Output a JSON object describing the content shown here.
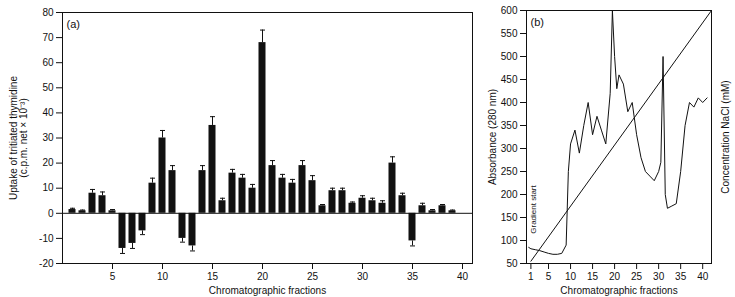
{
  "chart_data": [
    {
      "type": "bar",
      "title": "(a)",
      "xlabel": "Chromatographic fractions",
      "ylabel": "Uptake of tritiated thymidine\n(c.p.m. net × 10⁻³)",
      "x": [
        1,
        2,
        3,
        4,
        5,
        6,
        7,
        8,
        9,
        10,
        11,
        12,
        13,
        14,
        15,
        16,
        17,
        18,
        19,
        20,
        21,
        22,
        23,
        24,
        25,
        26,
        27,
        28,
        29,
        30,
        31,
        32,
        33,
        34,
        35,
        36,
        37,
        38,
        39
      ],
      "values": [
        1.5,
        1,
        8,
        7,
        1,
        -14,
        -12,
        -7,
        12,
        30,
        17,
        -10,
        -13,
        17,
        35,
        5,
        16,
        14,
        10,
        68,
        19,
        14,
        12,
        19,
        13,
        3,
        9,
        9,
        4,
        6,
        5,
        4,
        20,
        7,
        -11,
        3,
        1,
        3,
        1
      ],
      "errors": [
        0.5,
        0.3,
        1.5,
        1.5,
        0.5,
        2,
        2,
        1.5,
        2,
        3,
        2,
        1.5,
        2,
        2,
        3.5,
        1,
        1.5,
        1.5,
        1.5,
        5,
        2,
        1.5,
        1.5,
        2,
        2,
        0.5,
        1,
        1,
        0.5,
        1,
        1,
        1,
        2.5,
        1,
        2,
        1,
        0.5,
        0.5,
        0.3
      ],
      "color": "#111111",
      "xlim": [
        0,
        41
      ],
      "xticks": [
        5,
        10,
        15,
        20,
        25,
        30,
        35,
        40
      ],
      "ylim": [
        -20,
        80
      ],
      "yticks": [
        -20,
        -10,
        0,
        10,
        20,
        30,
        40,
        50,
        60,
        70,
        80
      ]
    },
    {
      "type": "line",
      "title": "(b)",
      "xlabel": "Chromatographic fractions",
      "ylabel": "Absorbance (280 nm)",
      "y2label": "Concentration NaCl (mM)",
      "xlim": [
        0,
        42
      ],
      "xticks": [
        1,
        5,
        10,
        15,
        20,
        25,
        30,
        35,
        40
      ],
      "ylim": [
        50,
        600
      ],
      "yticks": [
        50,
        100,
        150,
        200,
        250,
        300,
        350,
        400,
        450,
        500,
        550,
        600
      ],
      "y2lim": [
        50,
        600
      ],
      "series": [
        {
          "color": "#111111",
          "axis": "y",
          "x": [
            0.5,
            1,
            2,
            3,
            4,
            5,
            6,
            7,
            8,
            9,
            9.5,
            10,
            11,
            12,
            13,
            14,
            15,
            16,
            17,
            18,
            19,
            19.5,
            20,
            20.5,
            21,
            22,
            23,
            24,
            25,
            26,
            27,
            28,
            29,
            30,
            30.5,
            31,
            31.5,
            32,
            33,
            34,
            35,
            36,
            37,
            38,
            39,
            40,
            41
          ],
          "values": [
            85,
            82,
            80,
            78,
            75,
            72,
            70,
            70,
            72,
            90,
            250,
            310,
            340,
            290,
            350,
            400,
            330,
            370,
            340,
            310,
            420,
            600,
            500,
            430,
            460,
            440,
            380,
            400,
            330,
            280,
            250,
            240,
            230,
            250,
            270,
            500,
            200,
            170,
            175,
            180,
            250,
            350,
            400,
            390,
            410,
            400,
            410
          ]
        },
        {
          "color": "#111111",
          "axis": "y2",
          "x": [
            1,
            42
          ],
          "values": [
            55,
            600
          ]
        }
      ],
      "annotations": [
        {
          "text": "Gradient start"
        }
      ]
    }
  ]
}
